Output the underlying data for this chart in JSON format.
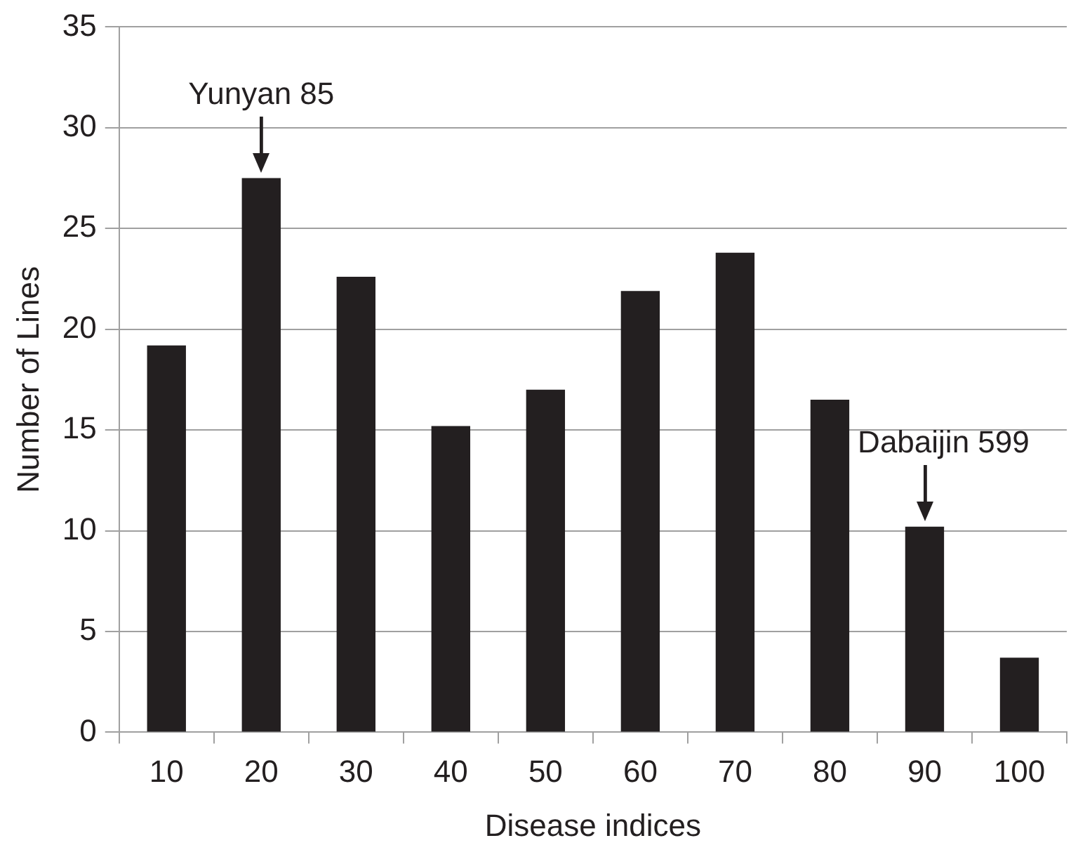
{
  "chart_data": {
    "type": "bar",
    "xlabel": "Disease indices",
    "ylabel": "Number of Lines",
    "categories": [
      "10",
      "20",
      "30",
      "40",
      "50",
      "60",
      "70",
      "80",
      "90",
      "100"
    ],
    "values": [
      19.2,
      27.5,
      22.6,
      15.2,
      17.0,
      21.9,
      23.8,
      16.5,
      10.2,
      3.7
    ],
    "color": "#231f20",
    "ylim": [
      0,
      35
    ],
    "yticks": [
      0,
      5,
      10,
      15,
      20,
      25,
      30,
      35
    ],
    "grid": "y",
    "legend": false,
    "annotations": [
      {
        "text": "Yunyan 85",
        "x": "20",
        "y": 27.5
      },
      {
        "text": "Dabaijin 599",
        "x": "90",
        "y": 10.2
      }
    ]
  }
}
